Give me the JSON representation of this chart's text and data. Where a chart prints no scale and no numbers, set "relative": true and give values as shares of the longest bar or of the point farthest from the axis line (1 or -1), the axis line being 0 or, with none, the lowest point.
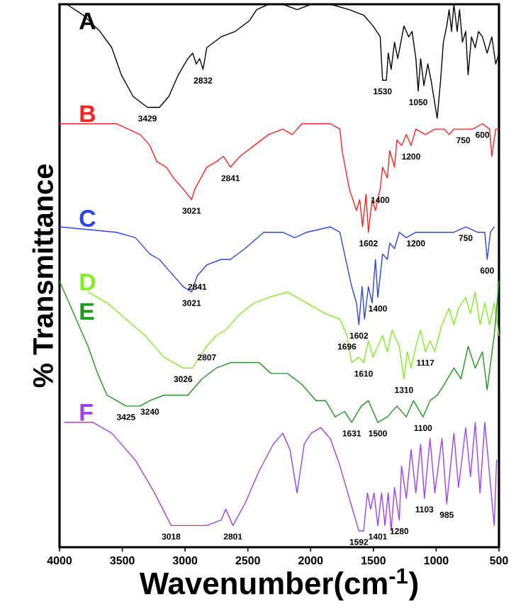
{
  "chart_data": {
    "type": "line",
    "relative": true,
    "xlabel": "Wavenumber(cm$^{-1}$)",
    "ylabel": "% Transmittance",
    "xlim": [
      4000,
      500
    ],
    "xticks": [
      4000,
      3500,
      3000,
      2500,
      2000,
      1500,
      1000,
      500
    ],
    "series": [
      {
        "name": "A",
        "color": "#000000",
        "x": [
          3943,
          3811,
          3678,
          3584,
          3508,
          3413,
          3300,
          3205,
          3130,
          3054,
          2978,
          2940,
          2910,
          2884,
          2857,
          2827,
          2713,
          2600,
          2486,
          2430,
          2335,
          2222,
          2108,
          1995,
          1843,
          1692,
          1578,
          1503,
          1446,
          1427,
          1397,
          1382,
          1359,
          1332,
          1306,
          1257,
          1219,
          1192,
          1162,
          1143,
          1124,
          1098,
          1067,
          1041,
          992,
          965,
          943,
          916,
          897,
          878,
          859,
          833,
          814,
          791,
          765,
          746,
          719,
          689,
          663,
          632,
          594,
          557,
          526,
          500
        ],
        "values": [
          1.0,
          0.98,
          0.95,
          0.92,
          0.87,
          0.83,
          0.81,
          0.81,
          0.83,
          0.87,
          0.9,
          0.91,
          0.89,
          0.9,
          0.88,
          0.92,
          0.94,
          0.95,
          0.97,
          0.99,
          1.0,
          1.0,
          0.99,
          1.0,
          1.0,
          0.99,
          0.98,
          0.96,
          0.94,
          0.86,
          0.86,
          0.91,
          0.88,
          0.93,
          0.9,
          0.96,
          0.94,
          0.95,
          0.9,
          0.84,
          0.9,
          0.85,
          0.89,
          0.86,
          0.79,
          0.86,
          0.93,
          0.96,
          0.99,
          0.95,
          1.0,
          0.95,
          0.99,
          0.93,
          0.95,
          0.87,
          0.94,
          0.92,
          0.95,
          0.94,
          0.91,
          0.94,
          0.89,
          0.91
        ]
      },
      {
        "name": "B",
        "color": "#ff2020",
        "x": [
          4000,
          3546,
          3357,
          3281,
          3224,
          3149,
          3092,
          3016,
          2948,
          2922,
          2827,
          2751,
          2695,
          2638,
          2562,
          2449,
          2335,
          2222,
          2146,
          2070,
          1843,
          1767,
          1749,
          1692,
          1635,
          1609,
          1586,
          1559,
          1540,
          1510,
          1484,
          1446,
          1427,
          1389,
          1370,
          1332,
          1313,
          1276,
          1238,
          1200,
          1162,
          1086,
          1011,
          935,
          897,
          859,
          784,
          708,
          632,
          575,
          557,
          526,
          500
        ],
        "values": [
          0.78,
          0.78,
          0.76,
          0.74,
          0.71,
          0.7,
          0.68,
          0.66,
          0.64,
          0.66,
          0.7,
          0.71,
          0.72,
          0.7,
          0.72,
          0.74,
          0.76,
          0.77,
          0.76,
          0.78,
          0.78,
          0.77,
          0.73,
          0.66,
          0.62,
          0.64,
          0.59,
          0.65,
          0.58,
          0.64,
          0.62,
          0.66,
          0.7,
          0.68,
          0.73,
          0.7,
          0.75,
          0.74,
          0.76,
          0.74,
          0.77,
          0.76,
          0.77,
          0.77,
          0.76,
          0.77,
          0.77,
          0.77,
          0.78,
          0.77,
          0.72,
          0.77,
          0.77
        ]
      },
      {
        "name": "C",
        "color": "#2b45e8",
        "x": [
          4000,
          3546,
          3395,
          3281,
          3205,
          3130,
          3016,
          2948,
          2903,
          2827,
          2713,
          2638,
          2524,
          2373,
          2222,
          2127,
          2032,
          1843,
          1767,
          1730,
          1673,
          1635,
          1616,
          1590,
          1571,
          1540,
          1510,
          1484,
          1465,
          1427,
          1389,
          1370,
          1332,
          1294,
          1238,
          1162,
          1086,
          1011,
          916,
          859,
          765,
          670,
          613,
          594,
          568,
          538
        ],
        "values": [
          0.59,
          0.58,
          0.57,
          0.54,
          0.53,
          0.51,
          0.48,
          0.47,
          0.5,
          0.52,
          0.53,
          0.53,
          0.55,
          0.58,
          0.58,
          0.57,
          0.58,
          0.59,
          0.58,
          0.54,
          0.48,
          0.45,
          0.41,
          0.48,
          0.42,
          0.48,
          0.45,
          0.53,
          0.46,
          0.54,
          0.53,
          0.56,
          0.55,
          0.58,
          0.57,
          0.58,
          0.58,
          0.58,
          0.58,
          0.58,
          0.59,
          0.58,
          0.58,
          0.53,
          0.58,
          0.59
        ]
      },
      {
        "name": "D",
        "color": "#80ee20",
        "x": [
          3773,
          3622,
          3470,
          3319,
          3168,
          3016,
          2940,
          2884,
          2827,
          2751,
          2676,
          2562,
          2449,
          2335,
          2184,
          2108,
          2032,
          1881,
          1767,
          1711,
          1673,
          1616,
          1578,
          1540,
          1503,
          1465,
          1427,
          1389,
          1351,
          1294,
          1257,
          1230,
          1200,
          1162,
          1124,
          1086,
          1049,
          1011,
          954,
          897,
          859,
          822,
          765,
          727,
          689,
          651,
          613,
          575,
          538,
          500
        ],
        "values": [
          0.47,
          0.45,
          0.42,
          0.39,
          0.35,
          0.33,
          0.33,
          0.35,
          0.37,
          0.39,
          0.4,
          0.43,
          0.45,
          0.46,
          0.47,
          0.46,
          0.45,
          0.43,
          0.42,
          0.39,
          0.34,
          0.35,
          0.34,
          0.38,
          0.35,
          0.37,
          0.39,
          0.36,
          0.4,
          0.37,
          0.31,
          0.36,
          0.33,
          0.37,
          0.4,
          0.36,
          0.38,
          0.36,
          0.41,
          0.44,
          0.41,
          0.44,
          0.46,
          0.43,
          0.47,
          0.41,
          0.45,
          0.41,
          0.45,
          0.39
        ]
      },
      {
        "name": "E",
        "color": "#1a9a1a",
        "x": [
          4000,
          3924,
          3849,
          3773,
          3697,
          3622,
          3546,
          3470,
          3357,
          3281,
          3168,
          2978,
          2865,
          2751,
          2638,
          2524,
          2411,
          2316,
          2184,
          2070,
          1957,
          1881,
          1805,
          1730,
          1673,
          1597,
          1540,
          1465,
          1389,
          1313,
          1238,
          1181,
          1105,
          1049,
          992,
          935,
          859,
          803,
          746,
          689,
          632,
          594,
          538,
          500
        ],
        "values": [
          0.49,
          0.45,
          0.41,
          0.37,
          0.32,
          0.28,
          0.27,
          0.26,
          0.26,
          0.27,
          0.28,
          0.28,
          0.31,
          0.33,
          0.34,
          0.34,
          0.34,
          0.32,
          0.32,
          0.3,
          0.27,
          0.27,
          0.24,
          0.25,
          0.23,
          0.26,
          0.27,
          0.23,
          0.24,
          0.26,
          0.24,
          0.27,
          0.24,
          0.27,
          0.28,
          0.3,
          0.33,
          0.31,
          0.37,
          0.33,
          0.36,
          0.29,
          0.39,
          0.49
        ]
      },
      {
        "name": "F",
        "color": "#a040f0",
        "x": [
          3962,
          3735,
          3584,
          3395,
          3243,
          3111,
          2978,
          2827,
          2713,
          2676,
          2619,
          2524,
          2411,
          2297,
          2222,
          2165,
          2108,
          2051,
          1995,
          1919,
          1843,
          1767,
          1692,
          1616,
          1578,
          1548,
          1522,
          1495,
          1465,
          1435,
          1408,
          1382,
          1359,
          1332,
          1294,
          1276,
          1238,
          1200,
          1162,
          1124,
          1094,
          1049,
          1011,
          954,
          916,
          859,
          822,
          765,
          727,
          689,
          651,
          613,
          538,
          519
        ],
        "values": [
          0.23,
          0.23,
          0.21,
          0.16,
          0.1,
          0.04,
          0.04,
          0.04,
          0.05,
          0.07,
          0.04,
          0.08,
          0.14,
          0.19,
          0.21,
          0.18,
          0.1,
          0.19,
          0.21,
          0.22,
          0.2,
          0.15,
          0.09,
          0.03,
          0.03,
          0.1,
          0.07,
          0.1,
          0.04,
          0.1,
          0.04,
          0.1,
          0.03,
          0.11,
          0.05,
          0.15,
          0.09,
          0.18,
          0.1,
          0.19,
          0.09,
          0.2,
          0.1,
          0.2,
          0.08,
          0.21,
          0.11,
          0.22,
          0.13,
          0.23,
          0.1,
          0.23,
          0.04,
          0.16
        ]
      }
    ],
    "annotations": [
      {
        "text": "3429",
        "x": 3300,
        "y": 0.81
      },
      {
        "text": "2832",
        "x": 2857,
        "y": 0.88
      },
      {
        "text": "1530",
        "x": 1427,
        "y": 0.86
      },
      {
        "text": "1050",
        "x": 1143,
        "y": 0.84
      },
      {
        "text": "1200",
        "x": 1200,
        "y": 0.74
      },
      {
        "text": "750",
        "x": 784,
        "y": 0.77
      },
      {
        "text": "600",
        "x": 632,
        "y": 0.78
      },
      {
        "text": "2841",
        "x": 2638,
        "y": 0.7
      },
      {
        "text": "3021",
        "x": 2948,
        "y": 0.64
      },
      {
        "text": "1400",
        "x": 1446,
        "y": 0.66
      },
      {
        "text": "1602",
        "x": 1540,
        "y": 0.58
      },
      {
        "text": "1200",
        "x": 1162,
        "y": 0.58
      },
      {
        "text": "750",
        "x": 765,
        "y": 0.59
      },
      {
        "text": "600",
        "x": 594,
        "y": 0.53
      },
      {
        "text": "2841",
        "x": 2903,
        "y": 0.5
      },
      {
        "text": "3021",
        "x": 2948,
        "y": 0.47
      },
      {
        "text": "1400",
        "x": 1465,
        "y": 0.46
      },
      {
        "text": "1602",
        "x": 1616,
        "y": 0.41
      },
      {
        "text": "2807",
        "x": 2827,
        "y": 0.37
      },
      {
        "text": "3026",
        "x": 3016,
        "y": 0.33
      },
      {
        "text": "1696",
        "x": 1711,
        "y": 0.39
      },
      {
        "text": "1610",
        "x": 1578,
        "y": 0.34
      },
      {
        "text": "1310",
        "x": 1257,
        "y": 0.31
      },
      {
        "text": "1117",
        "x": 1086,
        "y": 0.36
      },
      {
        "text": "3425",
        "x": 3470,
        "y": 0.26
      },
      {
        "text": "3240",
        "x": 3281,
        "y": 0.27
      },
      {
        "text": "1631",
        "x": 1673,
        "y": 0.23
      },
      {
        "text": "1500",
        "x": 1465,
        "y": 0.23
      },
      {
        "text": "1100",
        "x": 1105,
        "y": 0.24
      },
      {
        "text": "3018",
        "x": 3111,
        "y": 0.04
      },
      {
        "text": "2801",
        "x": 2619,
        "y": 0.04
      },
      {
        "text": "1592",
        "x": 1616,
        "y": 0.03
      },
      {
        "text": "1401",
        "x": 1465,
        "y": 0.04
      },
      {
        "text": "1280",
        "x": 1294,
        "y": 0.05
      },
      {
        "text": "1103",
        "x": 1094,
        "y": 0.09
      },
      {
        "text": "985",
        "x": 916,
        "y": 0.08
      }
    ]
  }
}
